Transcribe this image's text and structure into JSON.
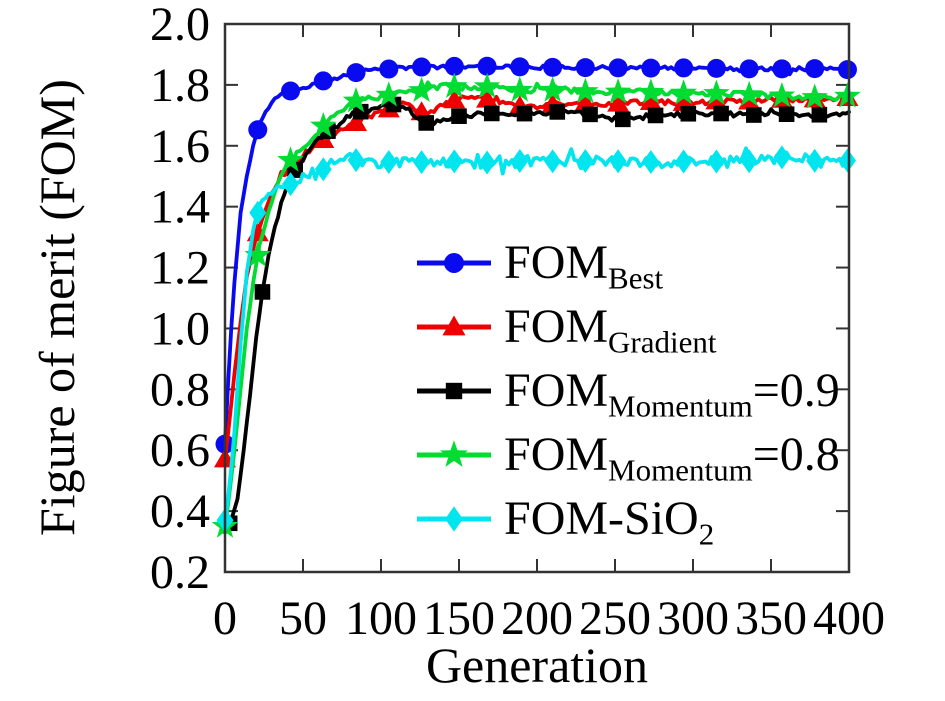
{
  "chart_data": {
    "type": "line",
    "title": "",
    "xlabel": "Generation",
    "ylabel": "Figure of merit (FOM)",
    "xlim": [
      0,
      400
    ],
    "ylim": [
      0.2,
      2.0
    ],
    "xticks": [
      0,
      50,
      100,
      150,
      200,
      250,
      300,
      350,
      400
    ],
    "yticks": [
      0.2,
      0.4,
      0.6,
      0.8,
      1.0,
      1.2,
      1.4,
      1.6,
      1.8,
      2.0
    ],
    "grid": false,
    "legend_position": "inside-center-right",
    "background": "#ffffff",
    "axis_color": "#333333",
    "series": [
      {
        "name": "FOM_Best",
        "label_parts": [
          {
            "text": "FOM"
          },
          {
            "text": "Best",
            "sub": true
          }
        ],
        "color": "#0a0af0",
        "marker": "circle",
        "marker_every": 21,
        "marker_phase": 0,
        "noise": 0.006,
        "x": [
          0,
          3,
          6,
          10,
          14,
          18,
          22,
          26,
          30,
          35,
          40,
          45,
          50,
          60,
          70,
          80,
          90,
          100,
          120,
          140,
          160,
          180,
          200,
          225,
          250,
          275,
          300,
          325,
          350,
          375,
          400
        ],
        "y": [
          0.62,
          0.92,
          1.15,
          1.38,
          1.5,
          1.6,
          1.67,
          1.71,
          1.74,
          1.77,
          1.78,
          1.78,
          1.79,
          1.81,
          1.82,
          1.835,
          1.848,
          1.85,
          1.858,
          1.86,
          1.862,
          1.86,
          1.858,
          1.857,
          1.856,
          1.855,
          1.856,
          1.853,
          1.852,
          1.854,
          1.85
        ]
      },
      {
        "name": "FOM_Gradient",
        "label_parts": [
          {
            "text": "FOM"
          },
          {
            "text": "Gradient",
            "sub": true
          }
        ],
        "color": "#ee0000",
        "marker": "triangle",
        "marker_every": 21,
        "marker_phase": 0,
        "noise": 0.008,
        "x": [
          0,
          3,
          6,
          10,
          14,
          18,
          22,
          26,
          30,
          35,
          40,
          45,
          50,
          60,
          70,
          80,
          90,
          100,
          108,
          115,
          122,
          128,
          135,
          142,
          150,
          160,
          170,
          180,
          190,
          200,
          215,
          230,
          245,
          260,
          275,
          290,
          305,
          320,
          335,
          350,
          365,
          380,
          400
        ],
        "y": [
          0.57,
          0.7,
          0.85,
          1.02,
          1.17,
          1.26,
          1.33,
          1.39,
          1.44,
          1.49,
          1.52,
          1.55,
          1.57,
          1.61,
          1.64,
          1.665,
          1.69,
          1.71,
          1.725,
          1.74,
          1.72,
          1.705,
          1.72,
          1.74,
          1.755,
          1.758,
          1.75,
          1.742,
          1.728,
          1.73,
          1.738,
          1.74,
          1.735,
          1.742,
          1.744,
          1.74,
          1.743,
          1.747,
          1.745,
          1.752,
          1.75,
          1.753,
          1.757
        ]
      },
      {
        "name": "FOM_Momentum=0.9",
        "label_parts": [
          {
            "text": "FOM"
          },
          {
            "text": "Momentum",
            "sub": true
          },
          {
            "text": "=0.9"
          }
        ],
        "color": "#000000",
        "marker": "square",
        "marker_every": 21,
        "marker_phase": 3,
        "noise": 0.008,
        "x": [
          0,
          4,
          8,
          12,
          16,
          20,
          24,
          28,
          32,
          36,
          40,
          45,
          50,
          55,
          60,
          65,
          70,
          75,
          80,
          85,
          90,
          95,
          100,
          105,
          110,
          117,
          124,
          130,
          138,
          146,
          155,
          165,
          180,
          195,
          210,
          225,
          240,
          252,
          265,
          280,
          295,
          315,
          335,
          355,
          375,
          400
        ],
        "y": [
          0.33,
          0.37,
          0.44,
          0.6,
          0.78,
          0.97,
          1.12,
          1.24,
          1.33,
          1.41,
          1.47,
          1.52,
          1.55,
          1.59,
          1.62,
          1.645,
          1.66,
          1.68,
          1.7,
          1.71,
          1.715,
          1.72,
          1.728,
          1.732,
          1.738,
          1.72,
          1.69,
          1.672,
          1.682,
          1.695,
          1.7,
          1.705,
          1.708,
          1.705,
          1.712,
          1.708,
          1.7,
          1.685,
          1.693,
          1.702,
          1.705,
          1.707,
          1.7,
          1.705,
          1.7,
          1.708
        ]
      },
      {
        "name": "FOM_Momentum=0.8",
        "label_parts": [
          {
            "text": "FOM"
          },
          {
            "text": "Momentum",
            "sub": true
          },
          {
            "text": "=0.8"
          }
        ],
        "color": "#00dc32",
        "marker": "star",
        "marker_every": 21,
        "marker_phase": 0,
        "noise": 0.009,
        "x": [
          0,
          3,
          6,
          10,
          14,
          18,
          22,
          26,
          30,
          35,
          40,
          45,
          50,
          55,
          60,
          65,
          70,
          75,
          80,
          85,
          90,
          95,
          100,
          110,
          120,
          130,
          140,
          150,
          160,
          170,
          180,
          190,
          200,
          215,
          230,
          245,
          260,
          275,
          290,
          305,
          320,
          335,
          350,
          365,
          380,
          400
        ],
        "y": [
          0.35,
          0.46,
          0.6,
          0.8,
          1.0,
          1.15,
          1.27,
          1.34,
          1.42,
          1.5,
          1.54,
          1.57,
          1.6,
          1.62,
          1.65,
          1.675,
          1.7,
          1.72,
          1.735,
          1.75,
          1.755,
          1.758,
          1.762,
          1.77,
          1.775,
          1.785,
          1.8,
          1.792,
          1.79,
          1.795,
          1.785,
          1.782,
          1.78,
          1.783,
          1.778,
          1.775,
          1.778,
          1.775,
          1.772,
          1.775,
          1.77,
          1.768,
          1.765,
          1.762,
          1.758,
          1.763
        ]
      },
      {
        "name": "FOM-SiO2",
        "label_parts": [
          {
            "text": "FOM-SiO"
          },
          {
            "text": "2",
            "sub": true
          }
        ],
        "color": "#00e5ee",
        "marker": "diamond",
        "marker_every": 21,
        "marker_phase": 0,
        "noise": 0.018,
        "x": [
          0,
          3,
          6,
          10,
          14,
          18,
          22,
          26,
          30,
          35,
          40,
          45,
          50,
          55,
          60,
          70,
          80,
          90,
          100,
          115,
          130,
          145,
          160,
          175,
          190,
          205,
          220,
          240,
          260,
          280,
          300,
          320,
          345,
          365,
          380,
          400
        ],
        "y": [
          0.37,
          0.48,
          0.66,
          0.95,
          1.18,
          1.32,
          1.4,
          1.43,
          1.44,
          1.46,
          1.47,
          1.48,
          1.5,
          1.515,
          1.52,
          1.53,
          1.555,
          1.55,
          1.545,
          1.55,
          1.545,
          1.55,
          1.542,
          1.548,
          1.55,
          1.548,
          1.552,
          1.548,
          1.55,
          1.545,
          1.55,
          1.548,
          1.55,
          1.57,
          1.548,
          1.552
        ]
      }
    ]
  }
}
